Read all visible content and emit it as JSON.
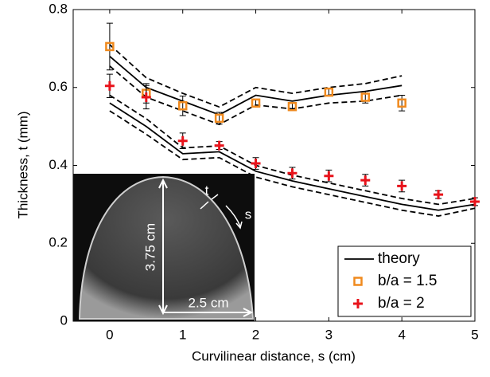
{
  "chart_data": {
    "type": "line",
    "xlabel": "Curvilinear distance, s (cm)",
    "ylabel": "Thickness, t (mm)",
    "xlim": [
      -0.5,
      5
    ],
    "ylim": [
      0,
      0.8
    ],
    "xticks": [
      0,
      1,
      2,
      3,
      4,
      5
    ],
    "yticks": [
      0,
      0.2,
      0.4,
      0.6,
      0.8
    ],
    "legend": "lower right",
    "series": [
      {
        "name": "theory",
        "kind": "line",
        "color": "#000000",
        "x": [
          0,
          0.5,
          1,
          1.5,
          2,
          2.5,
          3,
          3.5,
          4
        ],
        "values": [
          0.68,
          0.6,
          0.565,
          0.53,
          0.58,
          0.565,
          0.58,
          0.59,
          0.605
        ]
      },
      {
        "kind": "dashed",
        "color": "#000000",
        "x": [
          0,
          0.5,
          1,
          1.5,
          2,
          2.5,
          3,
          3.5,
          4
        ],
        "values": [
          0.71,
          0.625,
          0.585,
          0.55,
          0.6,
          0.585,
          0.6,
          0.61,
          0.63
        ]
      },
      {
        "kind": "dashed",
        "color": "#000000",
        "x": [
          0,
          0.5,
          1,
          1.5,
          2,
          2.5,
          3,
          3.5,
          4
        ],
        "values": [
          0.655,
          0.575,
          0.54,
          0.505,
          0.555,
          0.545,
          0.56,
          0.565,
          0.58
        ]
      },
      {
        "kind": "line",
        "color": "#000000",
        "x": [
          0,
          0.5,
          1,
          1.5,
          2,
          2.5,
          3,
          3.5,
          4,
          4.5,
          5
        ],
        "values": [
          0.56,
          0.5,
          0.43,
          0.435,
          0.385,
          0.36,
          0.34,
          0.32,
          0.3,
          0.285,
          0.3
        ]
      },
      {
        "kind": "dashed",
        "color": "#000000",
        "x": [
          0,
          0.5,
          1,
          1.5,
          2,
          2.5,
          3,
          3.5,
          4,
          4.5,
          5
        ],
        "values": [
          0.58,
          0.52,
          0.445,
          0.45,
          0.4,
          0.375,
          0.355,
          0.335,
          0.315,
          0.3,
          0.315
        ]
      },
      {
        "kind": "dashed",
        "color": "#000000",
        "x": [
          0,
          0.5,
          1,
          1.5,
          2,
          2.5,
          3,
          3.5,
          4,
          4.5,
          5
        ],
        "values": [
          0.54,
          0.48,
          0.415,
          0.42,
          0.37,
          0.345,
          0.325,
          0.305,
          0.285,
          0.27,
          0.29
        ]
      },
      {
        "name": "b/a = 1.5",
        "kind": "square",
        "color": "#f08a1e",
        "x": [
          0,
          0.5,
          1,
          1.5,
          2,
          2.5,
          3,
          3.5,
          4
        ],
        "values": [
          0.705,
          0.585,
          0.553,
          0.521,
          0.56,
          0.551,
          0.588,
          0.575,
          0.56
        ],
        "errors": [
          0.06,
          0.025,
          0.025,
          0.015,
          0.01,
          0.01,
          0.01,
          0.015,
          0.02
        ]
      },
      {
        "name": "b/a = 2",
        "kind": "plus",
        "color": "#e8131b",
        "x": [
          0,
          0.5,
          1,
          1.5,
          2,
          2.5,
          3,
          3.5,
          4,
          4.5,
          5
        ],
        "values": [
          0.604,
          0.575,
          0.463,
          0.451,
          0.405,
          0.38,
          0.373,
          0.362,
          0.347,
          0.325,
          0.307
        ],
        "errors": [
          0.03,
          0.03,
          0.02,
          0.01,
          0.015,
          0.015,
          0.015,
          0.015,
          0.015,
          0.01,
          0.01
        ]
      }
    ],
    "inset": {
      "height_label": "3.75 cm",
      "width_label": "2.5 cm",
      "thickness_label": "t",
      "arc_label": "s"
    }
  }
}
